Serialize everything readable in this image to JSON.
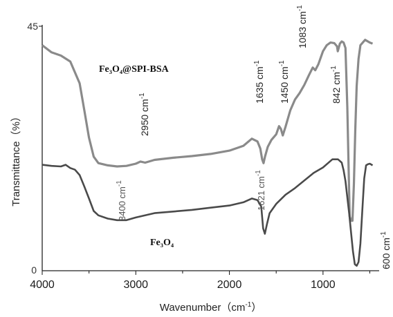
{
  "chart_data": {
    "type": "line",
    "xlabel": "Wavenumber（cm",
    "xlabel_sup": "-1",
    "xlabel_end": "）",
    "ylabel": "Transmittance（%）",
    "x_reversed": true,
    "xlim": [
      4000,
      400
    ],
    "ylim": [
      0,
      45
    ],
    "x_ticks": [
      "4000",
      "3000",
      "2000",
      "1000"
    ],
    "y_ticks": [
      "45",
      "0"
    ],
    "series": [
      {
        "name": "Fe₃O₄@SPI-BSA",
        "color": "#8a8a8a",
        "points": [
          [
            4000,
            41.5
          ],
          [
            3900,
            40.2
          ],
          [
            3800,
            39.6
          ],
          [
            3700,
            38.5
          ],
          [
            3600,
            34.5
          ],
          [
            3550,
            29.5
          ],
          [
            3500,
            24.5
          ],
          [
            3450,
            21.0
          ],
          [
            3400,
            19.8
          ],
          [
            3300,
            19.4
          ],
          [
            3200,
            19.2
          ],
          [
            3100,
            19.3
          ],
          [
            3000,
            19.7
          ],
          [
            2950,
            20.1
          ],
          [
            2900,
            19.9
          ],
          [
            2800,
            20.4
          ],
          [
            2600,
            20.8
          ],
          [
            2400,
            21.1
          ],
          [
            2200,
            21.5
          ],
          [
            2000,
            22.1
          ],
          [
            1850,
            23.0
          ],
          [
            1760,
            24.3
          ],
          [
            1700,
            23.8
          ],
          [
            1670,
            22.5
          ],
          [
            1650,
            20.5
          ],
          [
            1635,
            19.8
          ],
          [
            1620,
            21.0
          ],
          [
            1590,
            22.8
          ],
          [
            1550,
            24.1
          ],
          [
            1500,
            25.1
          ],
          [
            1470,
            26.6
          ],
          [
            1450,
            26.1
          ],
          [
            1430,
            24.9
          ],
          [
            1400,
            26.5
          ],
          [
            1350,
            29.5
          ],
          [
            1300,
            31.5
          ],
          [
            1250,
            32.7
          ],
          [
            1200,
            34.2
          ],
          [
            1150,
            36.0
          ],
          [
            1110,
            37.4
          ],
          [
            1083,
            36.9
          ],
          [
            1050,
            38.0
          ],
          [
            1000,
            40.4
          ],
          [
            960,
            41.5
          ],
          [
            920,
            42.0
          ],
          [
            880,
            41.9
          ],
          [
            850,
            41.3
          ],
          [
            842,
            40.4
          ],
          [
            820,
            41.8
          ],
          [
            800,
            42.2
          ],
          [
            780,
            42.0
          ],
          [
            760,
            41.0
          ],
          [
            740,
            30.0
          ],
          [
            725,
            18.0
          ],
          [
            715,
            10.0
          ],
          [
            700,
            9.2
          ],
          [
            685,
            9.2
          ],
          [
            670,
            16.0
          ],
          [
            655,
            26.0
          ],
          [
            640,
            34.0
          ],
          [
            620,
            39.0
          ],
          [
            600,
            41.5
          ],
          [
            550,
            42.5
          ],
          [
            500,
            42.0
          ],
          [
            470,
            41.8
          ]
        ]
      },
      {
        "name": "Fe₃O₄",
        "color": "#4a4a4a",
        "points": [
          [
            4000,
            19.5
          ],
          [
            3900,
            19.3
          ],
          [
            3800,
            19.2
          ],
          [
            3750,
            19.5
          ],
          [
            3700,
            18.9
          ],
          [
            3650,
            18.6
          ],
          [
            3600,
            17.6
          ],
          [
            3550,
            15.5
          ],
          [
            3500,
            13.3
          ],
          [
            3450,
            11.0
          ],
          [
            3400,
            10.2
          ],
          [
            3300,
            9.6
          ],
          [
            3200,
            9.3
          ],
          [
            3100,
            9.3
          ],
          [
            3000,
            9.8
          ],
          [
            2800,
            10.6
          ],
          [
            2600,
            10.9
          ],
          [
            2400,
            11.2
          ],
          [
            2200,
            11.6
          ],
          [
            2000,
            12.0
          ],
          [
            1850,
            12.6
          ],
          [
            1760,
            13.3
          ],
          [
            1700,
            13.0
          ],
          [
            1660,
            11.8
          ],
          [
            1640,
            7.8
          ],
          [
            1621,
            6.8
          ],
          [
            1600,
            8.5
          ],
          [
            1570,
            10.6
          ],
          [
            1500,
            12.3
          ],
          [
            1400,
            14.0
          ],
          [
            1300,
            15.2
          ],
          [
            1200,
            16.6
          ],
          [
            1100,
            18.0
          ],
          [
            1000,
            19.0
          ],
          [
            900,
            20.5
          ],
          [
            840,
            20.5
          ],
          [
            800,
            19.9
          ],
          [
            780,
            18.5
          ],
          [
            760,
            16.5
          ],
          [
            740,
            13.5
          ],
          [
            720,
            10.5
          ],
          [
            700,
            7.0
          ],
          [
            680,
            3.6
          ],
          [
            660,
            1.2
          ],
          [
            640,
            0.9
          ],
          [
            620,
            1.6
          ],
          [
            600,
            5.0
          ],
          [
            580,
            11.0
          ],
          [
            560,
            17.0
          ],
          [
            540,
            19.4
          ],
          [
            520,
            19.6
          ],
          [
            500,
            19.7
          ],
          [
            480,
            19.5
          ],
          [
            470,
            19.4
          ]
        ]
      }
    ],
    "annotations": [
      {
        "text": "2950 cm",
        "sup": "-1"
      },
      {
        "text": "1635 cm",
        "sup": "-1"
      },
      {
        "text": "1450 cm",
        "sup": "-1"
      },
      {
        "text": "1083 cm",
        "sup": "-1"
      },
      {
        "text": "842 cm",
        "sup": "-1"
      },
      {
        "text": "3400 cm",
        "sup": "-1"
      },
      {
        "text": "1621 cm",
        "sup": "-1"
      },
      {
        "text": "600 cm",
        "sup": "-1"
      }
    ],
    "series_labels": [
      {
        "text": "Fe₃O₄@SPI-BSA"
      },
      {
        "text": "Fe₃O₄"
      }
    ]
  }
}
